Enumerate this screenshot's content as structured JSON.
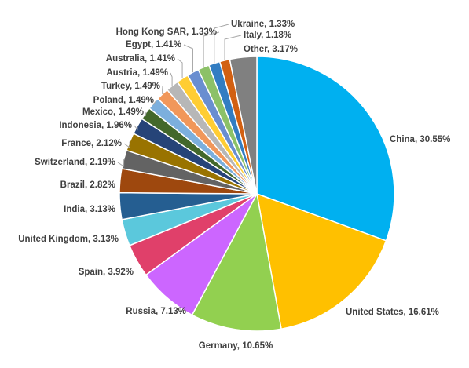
{
  "chart_data": {
    "type": "pie",
    "values": [
      30.55,
      16.61,
      10.65,
      7.13,
      3.92,
      3.13,
      3.13,
      2.82,
      2.19,
      2.12,
      1.96,
      1.49,
      1.49,
      1.49,
      1.49,
      1.41,
      1.41,
      1.33,
      1.33,
      1.18,
      3.17
    ],
    "value_labels": [
      "China, 30.55%",
      "United States, 16.61%",
      "Germany, 10.65%",
      "Russia, 7.13%",
      "Spain, 3.92%",
      "United Kingdom, 3.13%",
      "India, 3.13%",
      "Brazil, 2.82%",
      "Switzerland, 2.19%",
      "France, 2.12%",
      "Indonesia, 1.96%",
      "Mexico, 1.49%",
      "Poland, 1.49%",
      "Turkey, 1.49%",
      "Austria, 1.49%",
      "Australia, 1.41%",
      "Egypt, 1.41%",
      "Hong Kong SAR, 1.33%",
      "Ukraine, 1.33%",
      "Italy, 1.18%",
      "Other, 3.17%"
    ],
    "colors": [
      "#00b0f0",
      "#ffc000",
      "#92d050",
      "#cc66ff",
      "#e0406a",
      "#5bc8dc",
      "#255e91",
      "#9e480e",
      "#636363",
      "#997300",
      "#264478",
      "#43682b",
      "#7cafdd",
      "#f1975a",
      "#b7b7b7",
      "#ffcd33",
      "#698ed0",
      "#8cc168",
      "#327dc2",
      "#d26012",
      "#808080"
    ]
  }
}
